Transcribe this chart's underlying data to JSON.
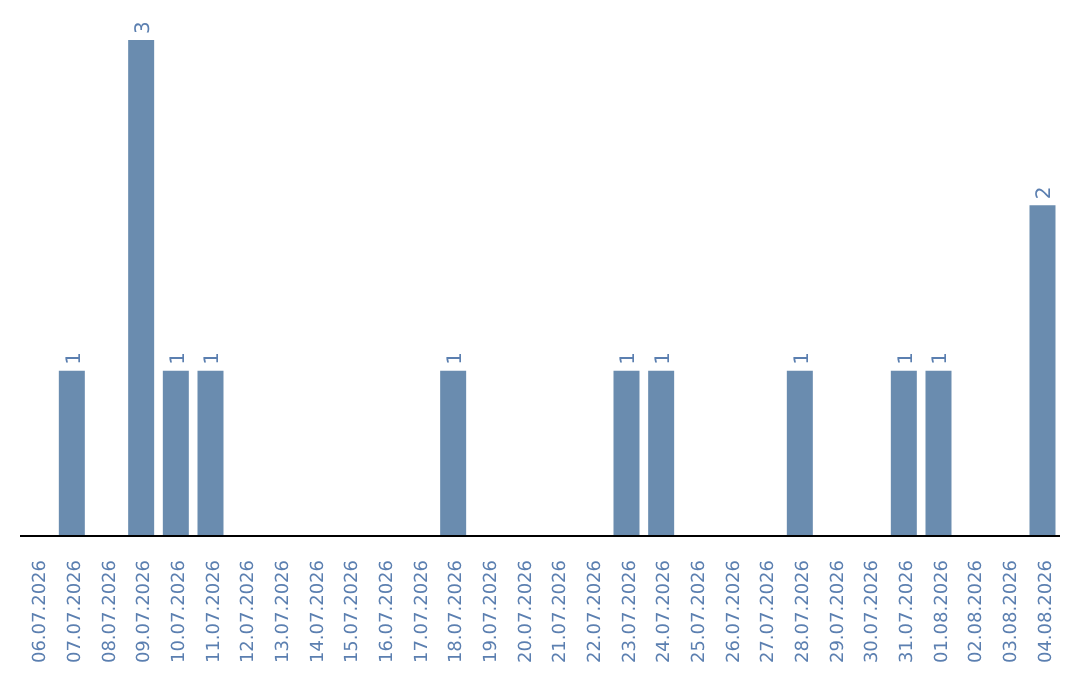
{
  "chart_data": {
    "type": "bar",
    "categories": [
      "06.07.2026",
      "07.07.2026",
      "08.07.2026",
      "09.07.2026",
      "10.07.2026",
      "11.07.2026",
      "12.07.2026",
      "13.07.2026",
      "14.07.2026",
      "15.07.2026",
      "16.07.2026",
      "17.07.2026",
      "18.07.2026",
      "19.07.2026",
      "20.07.2026",
      "21.07.2026",
      "22.07.2026",
      "23.07.2026",
      "24.07.2026",
      "25.07.2026",
      "26.07.2026",
      "27.07.2026",
      "28.07.2026",
      "29.07.2026",
      "30.07.2026",
      "31.07.2026",
      "01.08.2026",
      "02.08.2026",
      "03.08.2026",
      "04.08.2026"
    ],
    "values": [
      0,
      1,
      0,
      3,
      1,
      1,
      0,
      0,
      0,
      0,
      0,
      0,
      1,
      0,
      0,
      0,
      0,
      1,
      1,
      0,
      0,
      0,
      1,
      0,
      0,
      1,
      1,
      0,
      0,
      2
    ],
    "value_labels": [
      null,
      "1",
      null,
      "3",
      "1",
      "1",
      null,
      null,
      null,
      null,
      null,
      null,
      "1",
      null,
      null,
      null,
      null,
      "1",
      "1",
      null,
      null,
      null,
      "1",
      null,
      null,
      "1",
      "1",
      null,
      null,
      "2"
    ],
    "color": "#6a8caf",
    "tick_labels": "x",
    "grid": false
  }
}
